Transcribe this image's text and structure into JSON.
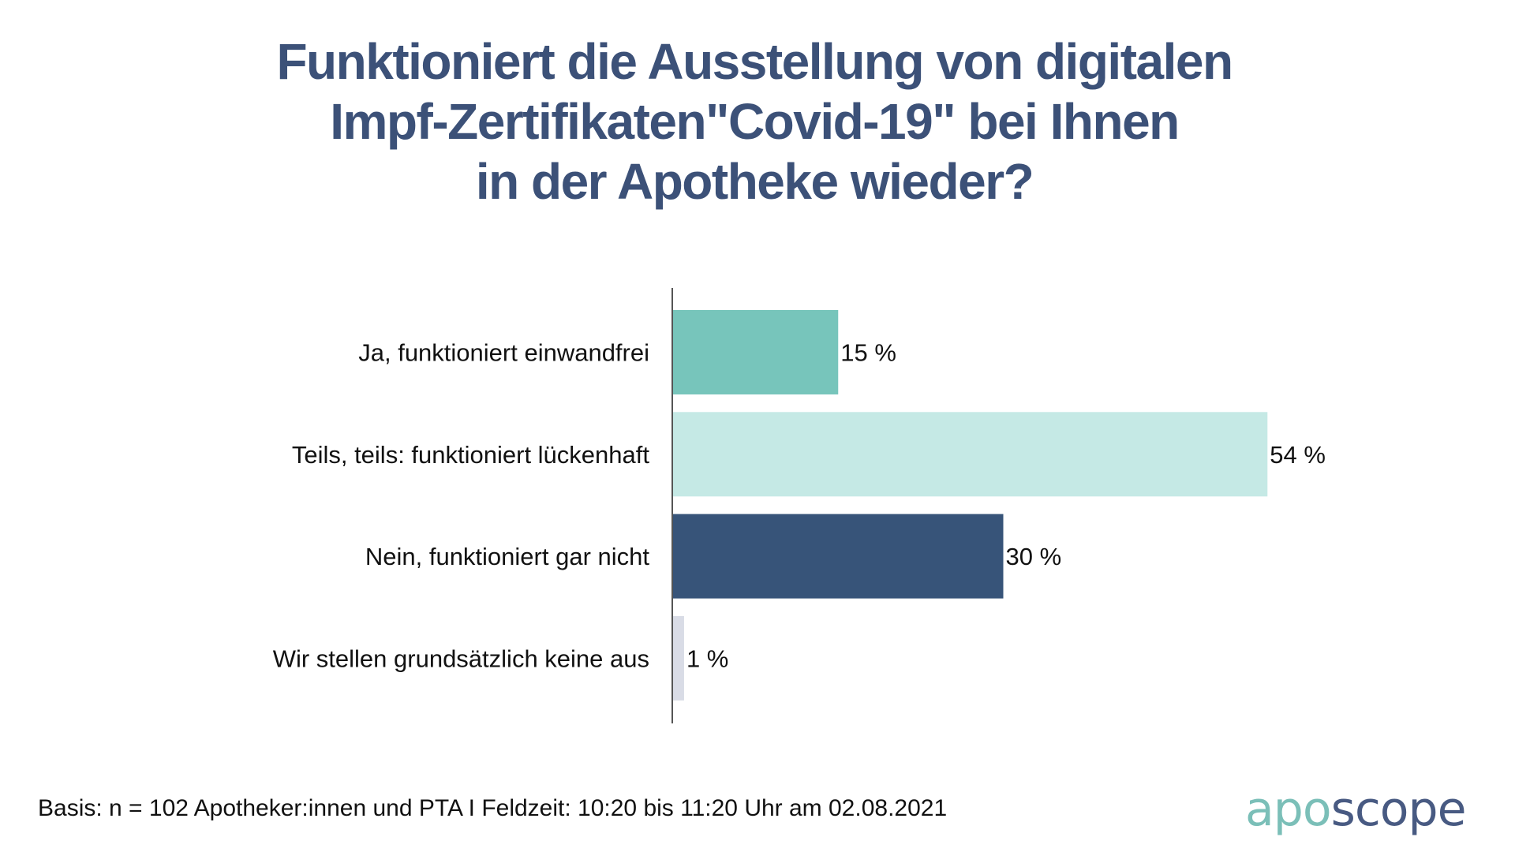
{
  "chart_data": {
    "type": "bar",
    "orientation": "horizontal",
    "title": "Funktioniert die Ausstellung von digitalen Impf-Zertifikaten\"Covid-19\" bei Ihnen in der Apotheke wieder?",
    "title_lines": [
      "Funktioniert die Ausstellung von digitalen",
      "Impf-Zertifikaten\"Covid-19\" bei Ihnen",
      "in der Apotheke wieder?"
    ],
    "categories": [
      "Ja, funktioniert einwandfrei",
      "Teils, teils: funktioniert lückenhaft",
      "Nein, funktioniert gar nicht",
      "Wir stellen grundsätzlich keine aus"
    ],
    "values": [
      15,
      54,
      30,
      1
    ],
    "value_labels": [
      "15 %",
      "54 %",
      "30 %",
      "1 %"
    ],
    "unit": "%",
    "colors": [
      "#77c5bb",
      "#c5e9e5",
      "#375479",
      "#d9dce6"
    ],
    "xlabel": "",
    "ylabel": "",
    "xlim": [
      0,
      100
    ],
    "grid": false,
    "legend": "none"
  },
  "footer": {
    "basis": "Basis: n = 102 Apotheker:innen und PTA I Feldzeit: 10:20 bis 11:20 Uhr am 02.08.2021"
  },
  "logo": {
    "part1": "apo",
    "part2": "scope",
    "color1": "#7bbfb8",
    "color2": "#485a82"
  },
  "colors": {
    "title": "#3c5178",
    "axis": "#555555"
  }
}
